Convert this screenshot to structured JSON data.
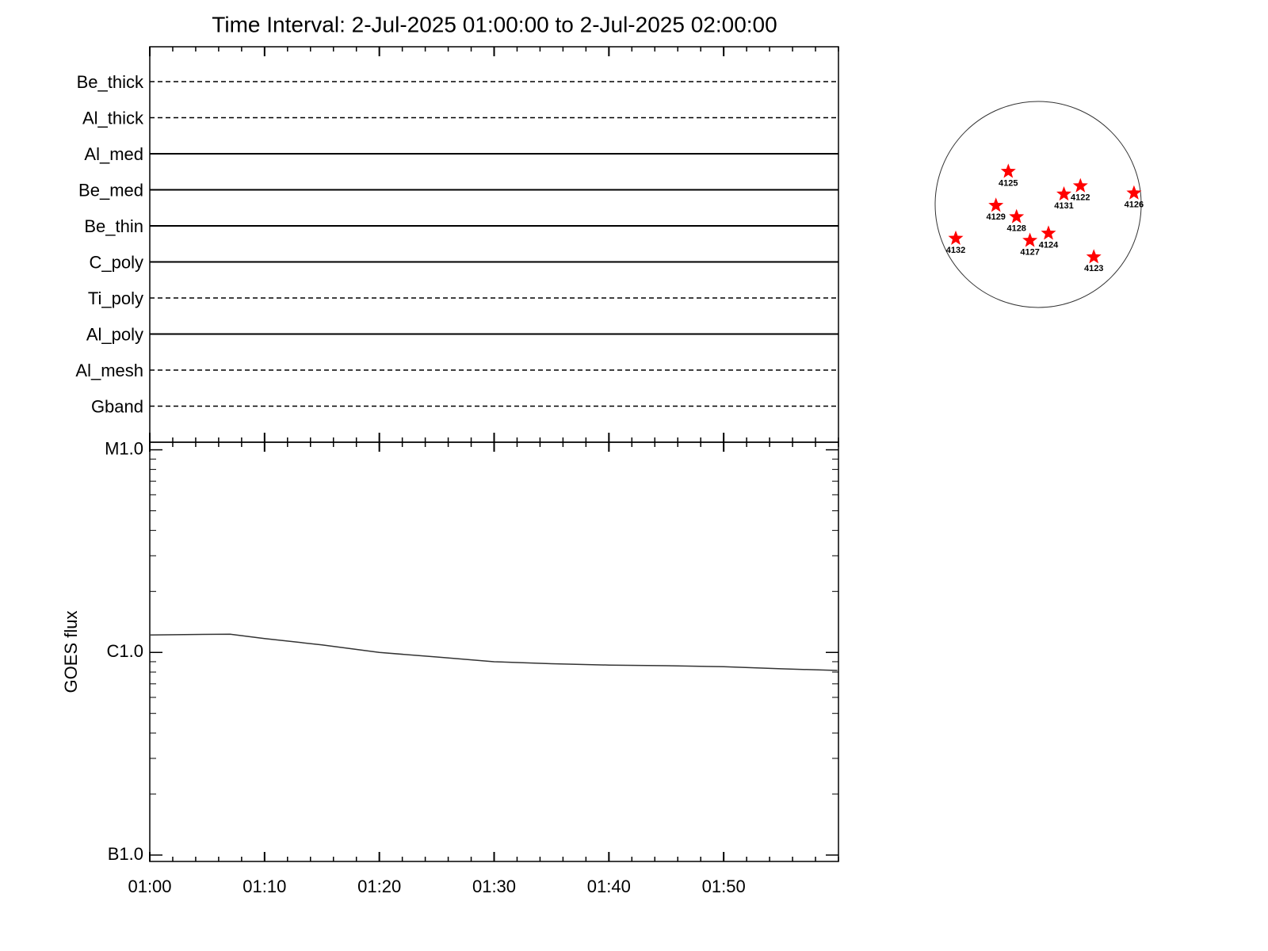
{
  "chart_data": [
    {
      "type": "filters",
      "title": "Time Interval:  2-Jul-2025 01:00:00 to  2-Jul-2025 02:00:00",
      "categories": [
        "Be_thick",
        "Al_thick",
        "Al_med",
        "Be_med",
        "Be_thin",
        "C_poly",
        "Ti_poly",
        "Al_poly",
        "Al_mesh",
        "Gband"
      ],
      "styles": [
        "dashed",
        "dashed",
        "solid",
        "solid",
        "solid",
        "solid",
        "dashed",
        "solid",
        "dashed",
        "dashed"
      ],
      "color": "#000000"
    },
    {
      "type": "line",
      "ylabel": "GOES flux",
      "ylog": true,
      "x": [
        0,
        3,
        7,
        10,
        15,
        20,
        25,
        30,
        35,
        40,
        45,
        50,
        55,
        59.9
      ],
      "values": [
        1.22e-06,
        1.225e-06,
        1.23e-06,
        1.17e-06,
        1.09e-06,
        1e-06,
        9.5e-07,
        9e-07,
        8.8e-07,
        8.66e-07,
        8.6e-07,
        8.5e-07,
        8.3e-07,
        8.15e-07
      ],
      "color": "#333333",
      "xlim": [
        0,
        60
      ],
      "xticks": [
        {
          "value": 0,
          "label": "01:00"
        },
        {
          "value": 10,
          "label": "01:10"
        },
        {
          "value": 20,
          "label": "01:20"
        },
        {
          "value": 30,
          "label": "01:30"
        },
        {
          "value": 40,
          "label": "01:40"
        },
        {
          "value": 50,
          "label": "01:50"
        }
      ],
      "xminor_step": 2,
      "ylim": [
        9.3e-08,
        1.09e-05
      ],
      "yticks": [
        {
          "value": 1e-05,
          "label": "M1.0"
        },
        {
          "value": 1e-06,
          "label": "C1.0"
        },
        {
          "value": 1e-07,
          "label": "B1.0"
        }
      ]
    },
    {
      "type": "disk",
      "color": "#ff0000",
      "regions": [
        {
          "label": "4125",
          "x": -0.29,
          "y": 0.32
        },
        {
          "label": "4122",
          "x": 0.41,
          "y": 0.18
        },
        {
          "label": "4131",
          "x": 0.25,
          "y": 0.1
        },
        {
          "label": "4126",
          "x": 0.93,
          "y": 0.11
        },
        {
          "label": "4129",
          "x": -0.41,
          "y": -0.01
        },
        {
          "label": "4128",
          "x": -0.21,
          "y": -0.12
        },
        {
          "label": "4124",
          "x": 0.1,
          "y": -0.28
        },
        {
          "label": "4127",
          "x": -0.08,
          "y": -0.35
        },
        {
          "label": "4132",
          "x": -0.8,
          "y": -0.33
        },
        {
          "label": "4123",
          "x": 0.54,
          "y": -0.51
        }
      ]
    }
  ]
}
